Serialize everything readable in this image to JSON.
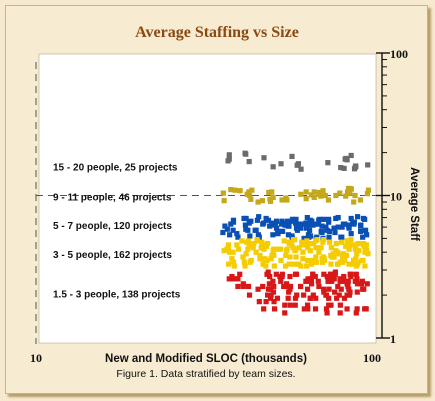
{
  "chart_data": {
    "type": "scatter",
    "title": "Average Staffing vs Size",
    "xlabel": "New and Modified SLOC  (thousands)",
    "ylabel": "Average Staff",
    "caption": "Figure 1. Data stratified by team sizes.",
    "x_scale": "log",
    "y_scale": "log",
    "xlim": [
      10,
      100
    ],
    "ylim": [
      1,
      100
    ],
    "x_ticks": [
      {
        "value": 10,
        "label": "10"
      },
      {
        "value": 100,
        "label": "100"
      }
    ],
    "y_ticks": [
      {
        "value": 100,
        "label": "100"
      },
      {
        "value": 10,
        "label": "10"
      },
      {
        "value": 1,
        "label": "1"
      }
    ],
    "reference_lines": [
      {
        "axis": "x",
        "value": 10,
        "style": "dashed"
      },
      {
        "axis": "y",
        "value": 10,
        "style": "dashed"
      }
    ],
    "grid": false,
    "series": [
      {
        "name": "15 - 20  people, 25 projects",
        "color": "#6b6b6b",
        "x": [
          37.6,
          43.1,
          59.9,
          88.7,
          89.5,
          50.8,
          57.8,
          37.3,
          53.6,
          84.3,
          73.9,
          41.9,
          97.1,
          83.2,
          60.4,
          86.7,
          61.5,
          37.6,
          42.1,
          89.4,
          83.7,
          47.7,
          82.6,
          89.2,
          80.7
        ],
        "y": [
          18.0,
          17.3,
          16.3,
          15.4,
          16.0,
          15.9,
          18.8,
          17.5,
          16.7,
          17.8,
          17.0,
          19.8,
          16.4,
          18.0,
          16.7,
          19.1,
          15.3,
          19.3,
          19.5,
          16.1,
          18.2,
          18.4,
          15.5,
          15.8,
          15.7
        ]
      },
      {
        "name": "9 - 11  people, 46 projects",
        "color": "#c4a81a",
        "x": [
          49.3,
          47.2,
          88.2,
          39.1,
          50.3,
          43.0,
          38.0,
          80.2,
          63.7,
          40.5,
          84.6,
          66.0,
          89.0,
          85.1,
          43.2,
          67.3,
          97.6,
          67.3,
          55.4,
          49.9,
          96.9,
          49.7,
          92.4,
          45.8,
          83.5,
          36.3,
          55.8,
          42.5,
          43.9,
          69.4,
          86.0,
          72.6,
          71.5,
          43.6,
          54.0,
          85.9,
          69.7,
          74.2,
          61.4,
          36.1,
          86.8,
          63.7,
          84.7,
          78.1,
          70.4,
          50.8
        ],
        "y": [
          10.5,
          9.2,
          9.0,
          10.9,
          10.6,
          10.6,
          11.0,
          10.4,
          9.5,
          10.8,
          10.6,
          10.1,
          10.0,
          11.2,
          10.0,
          9.7,
          10.9,
          10.6,
          9.6,
          9.1,
          10.3,
          9.4,
          9.3,
          9.0,
          9.9,
          9.2,
          9.3,
          10.2,
          10.9,
          10.2,
          11.2,
          10.0,
          10.8,
          9.4,
          9.3,
          10.4,
          10.5,
          9.3,
          10.2,
          10.4,
          11.1,
          10.6,
          10.3,
          10.0,
          9.9,
          9.7
        ]
      },
      {
        "name": "5 - 7  people, 120 projects",
        "color": "#0a50b4",
        "x": [
          46.2,
          36.0,
          53.7,
          42.7,
          94.3,
          60.0,
          65.2,
          38.6,
          46.0,
          51.6,
          80.8,
          79.3,
          85.5,
          43.1,
          83.0,
          57.8,
          86.7,
          45.6,
          82.2,
          74.3,
          49.6,
          79.3,
          88.4,
          85.3,
          52.0,
          50.7,
          59.2,
          63.6,
          61.4,
          38.7,
          57.9,
          37.7,
          41.6,
          37.1,
          52.5,
          44.9,
          42.2,
          56.4,
          70.6,
          56.3,
          57.3,
          88.6,
          56.6,
          92.5,
          77.1,
          43.3,
          64.6,
          48.4,
          56.1,
          55.1,
          71.0,
          72.9,
          78.0,
          66.2,
          36.5,
          54.0,
          38.0,
          55.5,
          74.7,
          62.8,
          69.9,
          52.4,
          73.5,
          39.9,
          64.2,
          50.3,
          58.0,
          77.6,
          74.3,
          86.7,
          95.7,
          60.2,
          50.7,
          62.0,
          47.6,
          52.0,
          81.5,
          42.1,
          68.2,
          95.1,
          93.8,
          45.2,
          68.2,
          71.7,
          54.2,
          90.6,
          96.4,
          59.4,
          65.5,
          45.9,
          59.1,
          71.0,
          85.2,
          68.5,
          81.3,
          74.5,
          39.6,
          59.6,
          66.8,
          64.7,
          87.6,
          55.5,
          64.9,
          69.3,
          55.1,
          43.6,
          71.5,
          92.6,
          64.8,
          47.3,
          42.0,
          69.4,
          38.7,
          53.8,
          92.5,
          49.2,
          63.8,
          65.6,
          56.6,
          60.0
        ],
        "y": [
          5.1,
          5.5,
          5.6,
          5.7,
          6.9,
          6.3,
          5.7,
          5.7,
          7.1,
          6.4,
          5.1,
          6.0,
          5.9,
          6.4,
          6.3,
          5.2,
          5.4,
          6.7,
          6.3,
          6.8,
          6.1,
          7.0,
          6.3,
          6.0,
          6.6,
          5.3,
          6.4,
          6.4,
          5.9,
          6.5,
          5.0,
          5.3,
          6.9,
          5.8,
          5.4,
          5.7,
          6.9,
          5.3,
          5.6,
          6.1,
          6.6,
          6.5,
          6.5,
          6.1,
          5.9,
          5.2,
          6.4,
          6.9,
          6.6,
          6.2,
          6.1,
          6.0,
          6.9,
          6.6,
          6.1,
          6.6,
          6.3,
          6.4,
          5.6,
          5.0,
          6.8,
          5.6,
          5.7,
          5.1,
          7.0,
          6.2,
          6.8,
          5.5,
          6.5,
          6.9,
          5.7,
          6.2,
          6.4,
          6.3,
          6.4,
          5.9,
          6.0,
          5.8,
          5.0,
          6.8,
          5.1,
          5.7,
          6.3,
          6.8,
          5.6,
          7.1,
          5.3,
          6.8,
          6.7,
          5.3,
          6.7,
          5.5,
          6.2,
          5.1,
          5.1,
          5.1,
          5.4,
          5.9,
          6.2,
          5.3,
          6.4,
          6.2,
          5.1,
          6.3,
          6.3,
          6.6,
          5.0,
          6.2,
          6.2,
          6.3,
          6.2,
          6.7,
          6.7,
          6.3,
          5.6,
          6.7,
          5.9,
          5.2,
          6.1,
          5.7
        ]
      },
      {
        "name": "3 - 5  people, 162 projects",
        "color": "#f5cc00",
        "x": [
          95.3,
          48.9,
          95.3,
          79.2,
          53.6,
          45.5,
          51.0,
          68.6,
          87.4,
          47.7,
          48.2,
          95.1,
          62.3,
          55.9,
          37.4,
          71.2,
          41.3,
          81.7,
          90.9,
          63.9,
          51.0,
          88.1,
          61.4,
          97.3,
          94.4,
          69.5,
          84.4,
          89.9,
          46.4,
          50.4,
          44.3,
          94.5,
          41.9,
          68.1,
          39.6,
          47.4,
          48.3,
          60.2,
          86.6,
          67.0,
          80.4,
          79.1,
          48.7,
          85.4,
          45.5,
          58.9,
          76.7,
          89.5,
          46.8,
          83.6,
          89.5,
          42.7,
          90.1,
          41.7,
          38.9,
          51.2,
          43.4,
          96.0,
          55.3,
          36.3,
          91.4,
          71.2,
          63.8,
          54.8,
          85.3,
          71.7,
          95.8,
          83.0,
          57.7,
          38.7,
          71.0,
          82.0,
          37.7,
          68.0,
          67.6,
          95.9,
          47.0,
          91.0,
          92.8,
          59.4,
          43.1,
          47.2,
          48.1,
          85.5,
          94.0,
          75.4,
          68.3,
          48.0,
          84.0,
          96.5,
          52.7,
          55.4,
          71.8,
          65.5,
          77.1,
          85.5,
          71.4,
          44.5,
          62.3,
          72.2,
          58.2,
          46.4,
          82.2,
          59.3,
          64.0,
          89.2,
          90.5,
          85.3,
          61.8,
          65.9,
          43.7,
          84.5,
          79.1,
          38.3,
          56.8,
          76.0,
          64.3,
          62.3,
          75.5,
          83.5,
          68.0,
          37.4,
          60.5,
          66.4,
          55.7,
          50.8,
          58.4,
          70.5,
          84.8,
          78.3,
          41.0,
          78.9,
          59.0,
          57.0,
          42.2,
          96.3,
          64.3,
          42.9,
          56.7,
          42.4,
          53.5,
          88.1,
          50.1,
          40.1,
          81.2,
          37.0,
          58.5,
          56.7,
          48.5,
          64.4,
          45.2,
          60.7,
          74.8,
          75.7,
          37.4,
          66.0,
          47.4,
          38.6,
          81.7,
          78.0,
          72.0,
          93.4
        ],
        "y": [
          3.2,
          4.6,
          4.0,
          3.3,
          3.5,
          4.9,
          4.2,
          4.9,
          3.3,
          4.2,
          4.4,
          4.4,
          4.5,
          4.2,
          4.3,
          3.4,
          3.7,
          3.4,
          4.6,
          3.2,
          3.8,
          4.5,
          3.2,
          3.9,
          4.6,
          4.0,
          4.8,
          3.2,
          3.6,
          3.8,
          4.3,
          4.5,
          3.2,
          4.3,
          4.5,
          4.3,
          3.2,
          3.3,
          4.9,
          4.6,
          3.4,
          3.9,
          3.5,
          3.3,
          4.8,
          4.9,
          3.9,
          3.6,
          4.3,
          3.8,
          4.3,
          4.2,
          3.9,
          3.4,
          3.2,
          3.2,
          3.4,
          4.0,
          3.2,
          4.1,
          4.1,
          3.5,
          4.5,
          4.8,
          4.8,
          3.7,
          4.2,
          3.5,
          4.5,
          3.4,
          3.6,
          3.8,
          4.0,
          3.7,
          3.4,
          4.1,
          4.7,
          3.4,
          4.6,
          3.7,
          4.5,
          4.5,
          3.5,
          4.2,
          3.5,
          3.8,
          3.4,
          3.6,
          3.8,
          4.1,
          4.2,
          3.8,
          4.9,
          4.1,
          3.7,
          4.5,
          4.7,
          4.6,
          3.6,
          3.5,
          4.3,
          3.8,
          3.9,
          4.2,
          4.8,
          4.2,
          3.3,
          4.3,
          4.7,
          4.6,
          3.5,
          4.8,
          4.0,
          3.6,
          4.7,
          3.7,
          3.5,
          4.0,
          3.3,
          4.4,
          4.8,
          4.5,
          3.3,
          3.5,
          4.1,
          4.1,
          4.9,
          4.3,
          4.6,
          4.6,
          4.8,
          3.3,
          4.1,
          3.7,
          3.9,
          4.5,
          4.4,
          4.8,
          3.3,
          4.7,
          4.2,
          3.5,
          3.6,
          4.2,
          4.7,
          4.2,
          3.3,
          4.6,
          4.4,
          4.3,
          4.0,
          4.3,
          4.7,
          4.3,
          3.3,
          3.3,
          3.3,
          4.0,
          3.6,
          4.1,
          3.6,
          3.5
        ]
      },
      {
        "name": "1.5 - 3  people, 138 projects",
        "color": "#d81818",
        "x": [
          49.5,
          39.9,
          63.6,
          71.8,
          85.7,
          66.7,
          69.5,
          64.4,
          49.9,
          43.2,
          57.0,
          66.6,
          89.8,
          49.6,
          86.0,
          56.5,
          79.9,
          95.7,
          80.4,
          54.6,
          77.8,
          73.6,
          66.9,
          82.1,
          59.6,
          73.2,
          66.1,
          80.5,
          47.6,
          64.5,
          73.5,
          77.7,
          75.9,
          90.3,
          48.9,
          67.8,
          85.3,
          76.3,
          64.3,
          59.2,
          75.4,
          50.0,
          76.6,
          57.2,
          41.4,
          75.4,
          51.9,
          84.3,
          86.1,
          55.0,
          48.4,
          38.9,
          65.5,
          77.2,
          51.0,
          89.8,
          55.7,
          63.6,
          84.8,
          64.3,
          82.8,
          67.9,
          90.2,
          95.1,
          65.9,
          74.5,
          93.6,
          73.2,
          74.3,
          49.2,
          55.6,
          45.8,
          80.3,
          39.9,
          64.8,
          47.3,
          77.4,
          62.9,
          74.0,
          74.3,
          90.4,
          56.3,
          59.2,
          37.6,
          38.6,
          51.1,
          89.2,
          49.1,
          86.5,
          54.1,
          53.2,
          50.1,
          93.8,
          50.7,
          84.3,
          68.0,
          93.0,
          82.4,
          51.3,
          40.4,
          48.7,
          94.5,
          52.3,
          66.0,
          65.5,
          80.4,
          71.9,
          96.8,
          75.3,
          81.0,
          61.3,
          85.0,
          41.4,
          59.1,
          75.5,
          57.0,
          55.0,
          38.3,
          57.1,
          46.2,
          53.5,
          84.3,
          62.6,
          42.9,
          50.9,
          59.7,
          90.5,
          82.9,
          96.1,
          86.7,
          79.1,
          80.8,
          71.9,
          54.0,
          78.5,
          72.9,
          69.2,
          74.3
        ],
        "y": [
          2.4,
          2.3,
          2.5,
          2.2,
          2.0,
          2.8,
          2.3,
          1.6,
          1.9,
          2.0,
          2.2,
          2.8,
          2.8,
          2.7,
          2.1,
          2.1,
          2.0,
          1.6,
          1.5,
          2.3,
          2.9,
          2.7,
          2.0,
          2.6,
          2.8,
          2.0,
          2.4,
          1.7,
          1.6,
          2.6,
          1.5,
          2.8,
          2.5,
          1.6,
          2.0,
          2.7,
          2.2,
          2.6,
          2.2,
          2.8,
          2.8,
          2.2,
          2.6,
          2.3,
          2.4,
          2.7,
          2.8,
          2.0,
          2.8,
          1.7,
          1.8,
          2.6,
          1.9,
          2.6,
          2.3,
          1.5,
          2.4,
          2.5,
          2.3,
          1.7,
          1.9,
          1.6,
          2.6,
          1.6,
          2.6,
          2.2,
          2.5,
          1.6,
          1.9,
          2.2,
          2.3,
          2.2,
          2.6,
          2.6,
          2.5,
          2.3,
          2.1,
          1.6,
          2.5,
          2.5,
          2.1,
          1.9,
          1.9,
          2.6,
          2.6,
          1.8,
          2.5,
          2.9,
          2.7,
          2.8,
          2.7,
          2.0,
          2.2,
          2.5,
          1.6,
          1.9,
          2.4,
          2.7,
          1.6,
          2.8,
          2.8,
          2.2,
          1.9,
          2.6,
          1.9,
          2.5,
          2.8,
          2.4,
          2.8,
          2.2,
          2.3,
          2.5,
          2.3,
          1.7,
          1.7,
          2.7,
          1.5,
          2.7,
          1.7,
          1.8,
          2.5,
          2.4,
          2.0,
          2.3,
          2.1,
          2.0,
          2.4,
          2.5,
          1.6,
          2.8,
          2.3,
          2.5,
          2.1,
          2.7,
          1.9,
          2.0,
          2.5,
          1.7
        ]
      }
    ],
    "group_labels": [
      {
        "text": "15 - 20  people, 25 projects",
        "y": 16.0
      },
      {
        "text": "9 - 11  people, 46 projects",
        "y": 9.85
      },
      {
        "text": "5 - 7  people, 120 projects",
        "y": 6.2
      },
      {
        "text": "3 - 5  people, 162 projects",
        "y": 3.9
      },
      {
        "text": "1.5 - 3  people, 138 projects",
        "y": 2.05
      }
    ]
  }
}
